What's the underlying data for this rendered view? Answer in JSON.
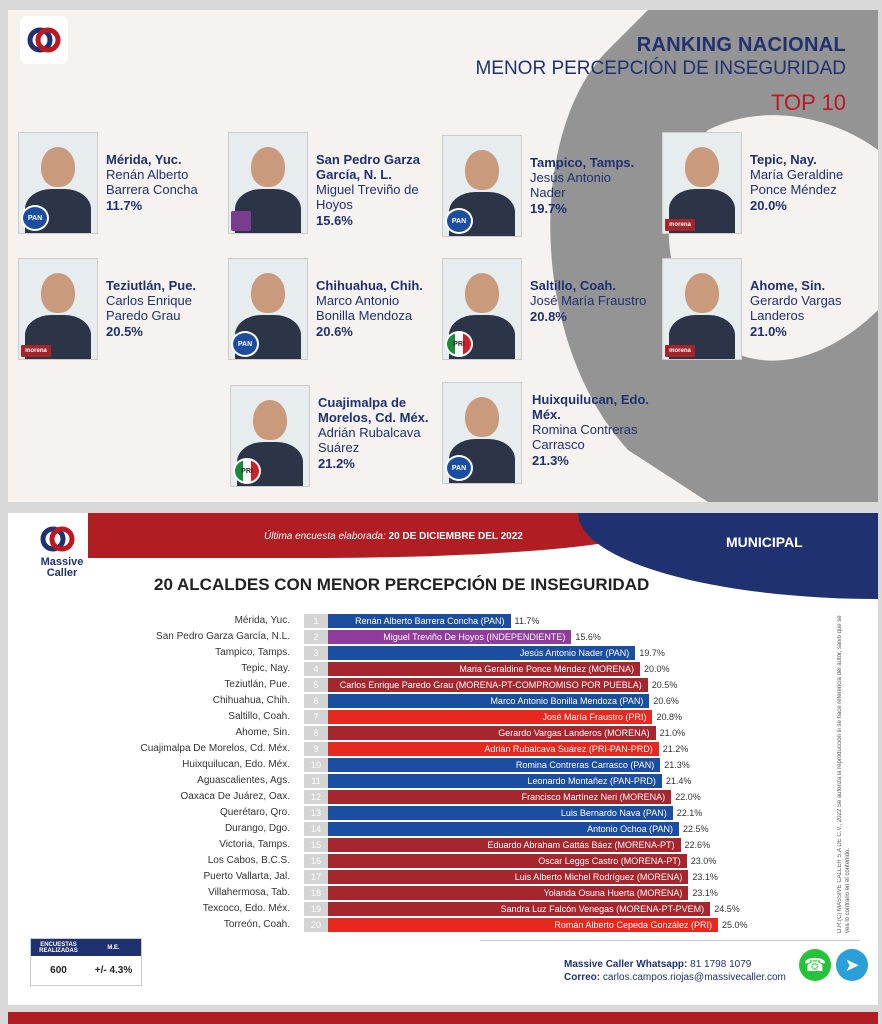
{
  "top_panel": {
    "title": "RANKING NACIONAL",
    "subtitle": "MENOR PERCEPCIÓN DE INSEGURIDAD",
    "tag": "TOP 10",
    "cards": [
      {
        "city": "Mérida, Yuc.",
        "name": "Renán Alberto Barrera Concha",
        "pct": "11.7%",
        "party": "PAN"
      },
      {
        "city": "San Pedro Garza García, N. L.",
        "name": "Miguel Treviño de Hoyos",
        "pct": "15.6%",
        "party": "IND"
      },
      {
        "city": "Tampico, Tamps.",
        "name": "Jesús Antonio Nader",
        "pct": "19.7%",
        "party": "PAN"
      },
      {
        "city": "Tepic, Nay.",
        "name": "María Geraldine Ponce Méndez",
        "pct": "20.0%",
        "party": "MORENA"
      },
      {
        "city": "Teziutlán, Pue.",
        "name": "Carlos Enrique Paredo Grau",
        "pct": "20.5%",
        "party": "MORENA"
      },
      {
        "city": "Chihuahua, Chih.",
        "name": "Marco Antonio Bonilla Mendoza",
        "pct": "20.6%",
        "party": "PAN"
      },
      {
        "city": "Saltillo, Coah.",
        "name": "José María Fraustro",
        "pct": "20.8%",
        "party": "PRI"
      },
      {
        "city": "Ahome, Sin.",
        "name": "Gerardo Vargas Landeros",
        "pct": "21.0%",
        "party": "MORENA"
      },
      {
        "city": "Cuajimalpa de Morelos, Cd. Méx.",
        "name": "Adrián Rubalcava Suárez",
        "pct": "21.2%",
        "party": "PRI"
      },
      {
        "city": "Huixquilucan, Edo. Méx.",
        "name": "Romina Contreras Carrasco",
        "pct": "21.3%",
        "party": "PAN"
      }
    ]
  },
  "bottom_panel": {
    "brand": "Massive Caller",
    "survey_label": "Última encuesta elaborada:",
    "survey_date": "20 DE DICIEMBRE DEL 2022",
    "section": "MUNICIPAL",
    "stats": {
      "h1": "ENCUESTAS REALIZADAS",
      "h2": "M.E.",
      "v1": "600",
      "v2": "+/- 4.3%"
    },
    "whatsapp_label": "Massive Caller Whatsapp:",
    "whatsapp": "81 1798 1079",
    "email_label": "Correo:",
    "email": "carlos.campos.riojas@massivecaller.com",
    "vertical_text": "D.R.(C) MASSIVE CALLER S.A DE C.V., 2022 Se autoriza la reproducción si se hace referencia del autor, salvo que se vea lo contrario en el contenido.",
    "colors": {
      "PAN": "#1b4ea0",
      "MORENA": "#a6262d",
      "PRI": "#e6281e",
      "INDEPENDIENTE": "#8f3c9e",
      "accent_red": "#b01e23",
      "accent_blue": "#1f3170"
    }
  },
  "chart_data": {
    "type": "bar",
    "orientation": "horizontal",
    "title": "20 ALCALDES CON MENOR PERCEPCIÓN DE INSEGURIDAD",
    "xlim": [
      0,
      25
    ],
    "rows": [
      {
        "rank": "1",
        "city": "Mérida, Yuc.",
        "label": "Renán Alberto Barrera Concha (PAN)",
        "value": 11.7,
        "value_label": "11.7%",
        "party": "PAN"
      },
      {
        "rank": "2",
        "city": "San Pedro Garza García, N.L.",
        "label": "Miguel Treviño De Hoyos (INDEPENDIENTE)",
        "value": 15.6,
        "value_label": "15.6%",
        "party": "INDEPENDIENTE"
      },
      {
        "rank": "3",
        "city": "Tampico, Tamps.",
        "label": "Jesús Antonio Nader (PAN)",
        "value": 19.7,
        "value_label": "19.7%",
        "party": "PAN"
      },
      {
        "rank": "4",
        "city": "Tepic, Nay.",
        "label": "Maria Geraldine Ponce Méndez (MORENA)",
        "value": 20.0,
        "value_label": "20.0%",
        "party": "MORENA"
      },
      {
        "rank": "5",
        "city": "Teziutlán, Pue.",
        "label": "Carlos Enrique Paredo Grau (MORENA-PT-COMPROMISO POR PUEBLA)",
        "value": 20.5,
        "value_label": "20.5%",
        "party": "MORENA"
      },
      {
        "rank": "6",
        "city": "Chihuahua, Chih.",
        "label": "Marco Antonio Bonilla Mendoza (PAN)",
        "value": 20.6,
        "value_label": "20.6%",
        "party": "PAN"
      },
      {
        "rank": "7",
        "city": "Saltillo, Coah.",
        "label": "José María Fraustro (PRI)",
        "value": 20.8,
        "value_label": "20.8%",
        "party": "PRI"
      },
      {
        "rank": "8",
        "city": "Ahome, Sin.",
        "label": "Gerardo Vargas Landeros (MORENA)",
        "value": 21.0,
        "value_label": "21.0%",
        "party": "MORENA"
      },
      {
        "rank": "9",
        "city": "Cuajimalpa De Morelos, Cd. Méx.",
        "label": "Adrián Rubalcava Suárez (PRI-PAN-PRD)",
        "value": 21.2,
        "value_label": "21.2%",
        "party": "PRI"
      },
      {
        "rank": "10",
        "city": "Huixquilucan, Edo. Méx.",
        "label": "Romina Contreras Carrasco (PAN)",
        "value": 21.3,
        "value_label": "21.3%",
        "party": "PAN"
      },
      {
        "rank": "11",
        "city": "Aguascalientes, Ags.",
        "label": "Leonardo Montañez (PAN-PRD)",
        "value": 21.4,
        "value_label": "21.4%",
        "party": "PAN"
      },
      {
        "rank": "12",
        "city": "Oaxaca De Juárez, Oax.",
        "label": "Francisco Martínez Neri (MORENA)",
        "value": 22.0,
        "value_label": "22.0%",
        "party": "MORENA"
      },
      {
        "rank": "13",
        "city": "Querétaro, Qro.",
        "label": "Luis Bernardo Nava (PAN)",
        "value": 22.1,
        "value_label": "22.1%",
        "party": "PAN"
      },
      {
        "rank": "14",
        "city": "Durango, Dgo.",
        "label": "Antonio Ochoa (PAN)",
        "value": 22.5,
        "value_label": "22.5%",
        "party": "PAN"
      },
      {
        "rank": "15",
        "city": "Victoria, Tamps.",
        "label": "Eduardo Abraham Gattás Báez (MORENA-PT)",
        "value": 22.6,
        "value_label": "22.6%",
        "party": "MORENA"
      },
      {
        "rank": "16",
        "city": "Los Cabos, B.C.S.",
        "label": "Oscar Leggs Castro (MORENA-PT)",
        "value": 23.0,
        "value_label": "23.0%",
        "party": "MORENA"
      },
      {
        "rank": "17",
        "city": "Puerto Vallarta, Jal.",
        "label": "Luis Alberto Michel Rodríguez (MORENA)",
        "value": 23.1,
        "value_label": "23.1%",
        "party": "MORENA"
      },
      {
        "rank": "18",
        "city": "Villahermosa, Tab.",
        "label": "Yolanda Osuna Huerta (MORENA)",
        "value": 23.1,
        "value_label": "23.1%",
        "party": "MORENA"
      },
      {
        "rank": "19",
        "city": "Texcoco, Edo. Méx.",
        "label": "Sandra Luz Falcón Venegas (MORENA-PT-PVEM)",
        "value": 24.5,
        "value_label": "24.5%",
        "party": "MORENA"
      },
      {
        "rank": "20",
        "city": "Torreón, Coah.",
        "label": "Román Alberto Cepeda González (PRI)",
        "value": 25.0,
        "value_label": "25.0%",
        "party": "PRI"
      }
    ]
  }
}
